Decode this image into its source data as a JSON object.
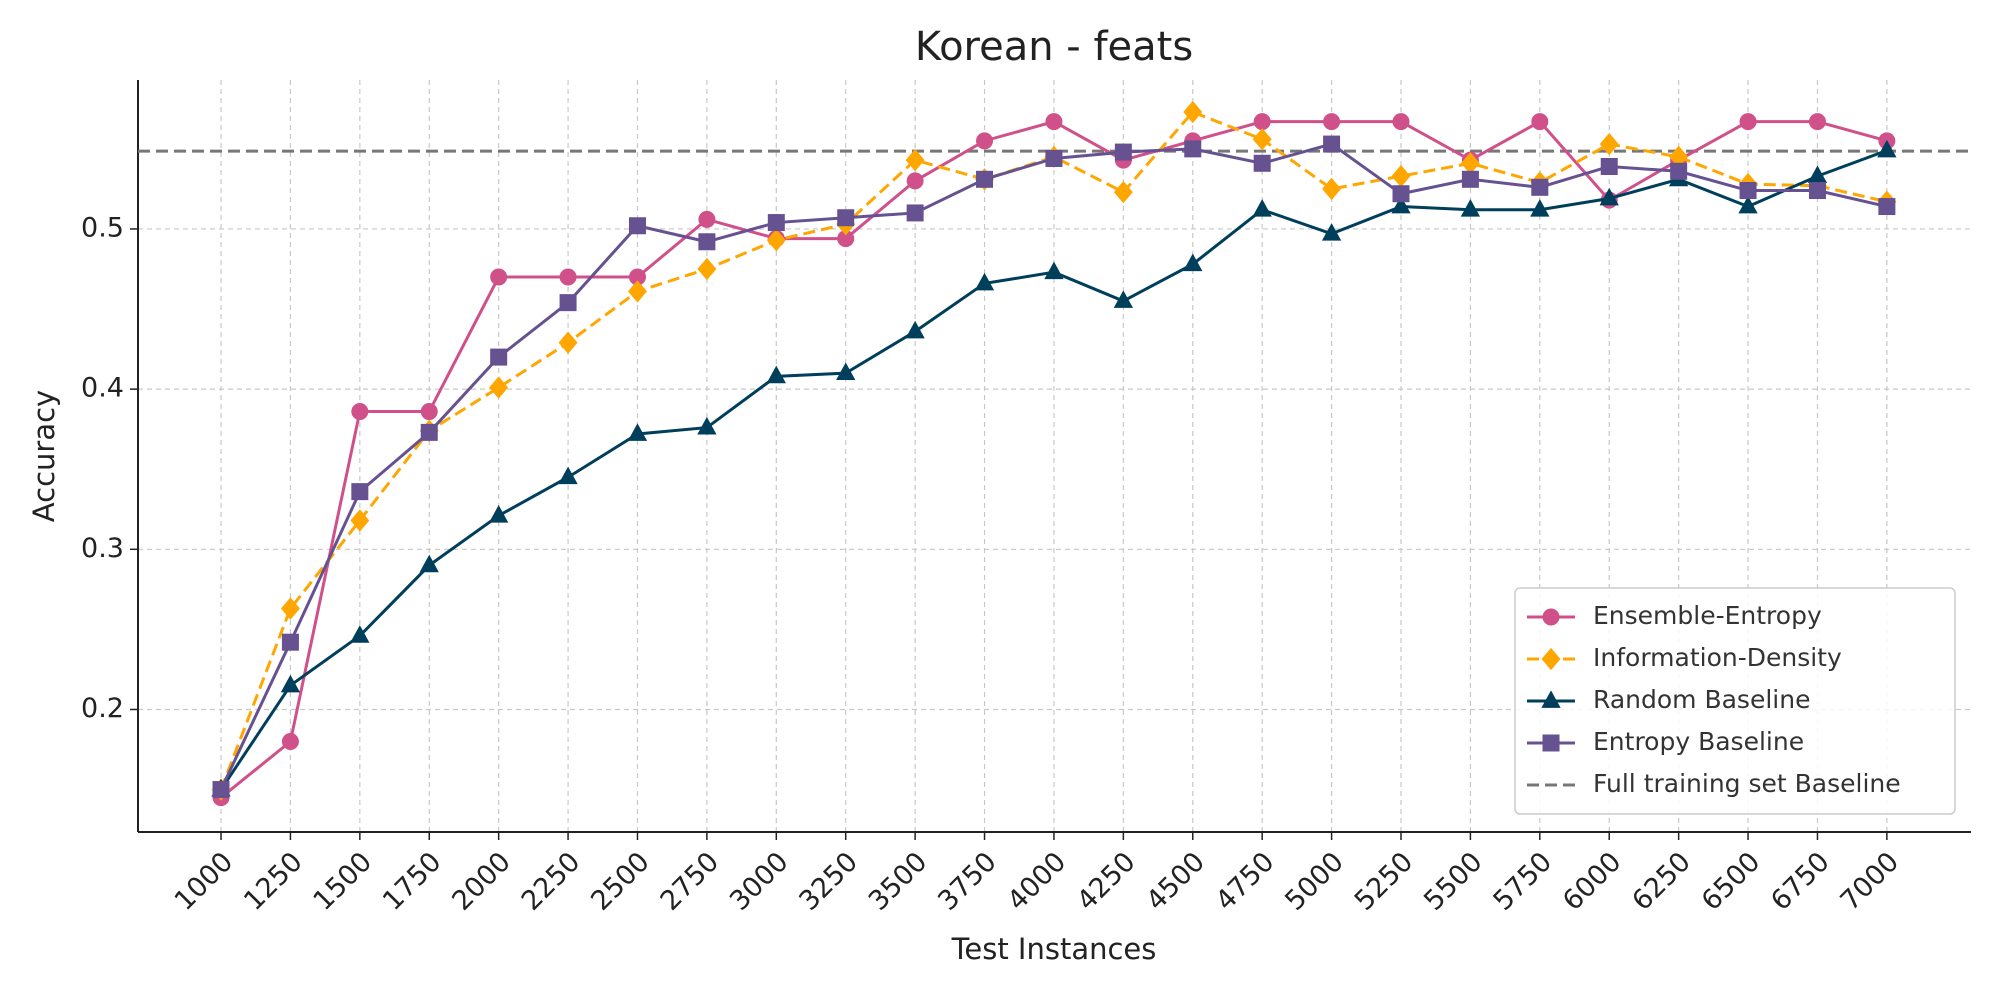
{
  "chart_data": {
    "type": "line",
    "title": "Korean - feats",
    "x_label": "Test Instances",
    "y_label": "Accuracy",
    "x": [
      1000,
      1250,
      1500,
      1750,
      2000,
      2250,
      2500,
      2750,
      3000,
      3250,
      3500,
      3750,
      4000,
      4250,
      4500,
      4750,
      5000,
      5250,
      5500,
      5750,
      6000,
      6250,
      6500,
      6750,
      7000
    ],
    "xlim": [
      701,
      7303
    ],
    "xticks": [
      1000,
      1250,
      1500,
      1750,
      2000,
      2250,
      2500,
      2750,
      3000,
      3250,
      3500,
      3750,
      4000,
      4250,
      4500,
      4750,
      5000,
      5250,
      5500,
      5750,
      6000,
      6250,
      6500,
      6750,
      7000
    ],
    "ylim": [
      0.1235,
      0.593
    ],
    "yticks": [
      0.2,
      0.3,
      0.4,
      0.5
    ],
    "grid": true,
    "legend": "lower right",
    "series": [
      {
        "name": "Ensemble-Entropy",
        "color": "#d0508a",
        "marker": "circle",
        "dashed": false,
        "values": [
          0.145,
          0.18,
          0.386,
          0.386,
          0.47,
          0.47,
          0.47,
          0.506,
          0.494,
          0.494,
          0.53,
          0.555,
          0.567,
          0.543,
          0.555,
          0.567,
          0.567,
          0.567,
          0.543,
          0.567,
          0.518,
          0.543,
          0.567,
          0.567,
          0.555
        ]
      },
      {
        "name": "Information-Density",
        "color": "#ffa600",
        "marker": "diamond",
        "dashed": true,
        "values": [
          0.15,
          0.263,
          0.318,
          0.374,
          0.401,
          0.429,
          0.461,
          0.475,
          0.493,
          0.503,
          0.543,
          0.531,
          0.545,
          0.523,
          0.573,
          0.556,
          0.525,
          0.533,
          0.541,
          0.529,
          0.553,
          0.545,
          0.528,
          0.527,
          0.517
        ]
      },
      {
        "name": "Random Baseline",
        "color": "#003f5c",
        "marker": "triangle",
        "dashed": false,
        "values": [
          0.15,
          0.215,
          0.246,
          0.29,
          0.321,
          0.345,
          0.372,
          0.376,
          0.408,
          0.41,
          0.436,
          0.466,
          0.473,
          0.455,
          0.478,
          0.512,
          0.497,
          0.514,
          0.512,
          0.512,
          0.519,
          0.531,
          0.514,
          0.533,
          0.549
        ]
      },
      {
        "name": "Entropy Baseline",
        "color": "#665191",
        "marker": "square",
        "dashed": false,
        "values": [
          0.15,
          0.242,
          0.336,
          0.373,
          0.42,
          0.454,
          0.502,
          0.492,
          0.504,
          0.507,
          0.51,
          0.531,
          0.544,
          0.548,
          0.55,
          0.541,
          0.553,
          0.522,
          0.531,
          0.526,
          0.539,
          0.536,
          0.524,
          0.524,
          0.514
        ]
      }
    ],
    "baseline": {
      "name": "Full training set Baseline",
      "value": 0.5486,
      "color": "#777777"
    }
  }
}
